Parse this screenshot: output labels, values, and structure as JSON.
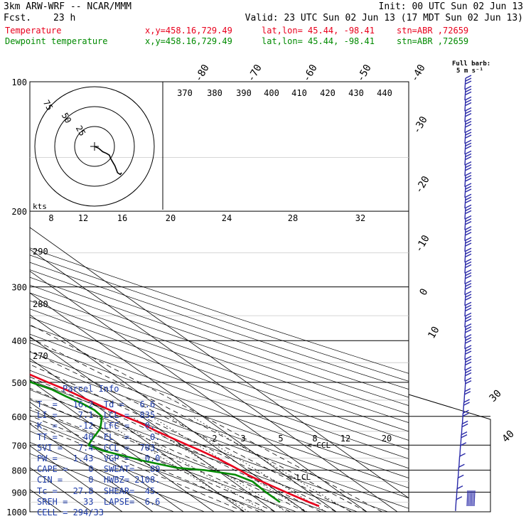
{
  "header": {
    "model": "3km ARW-WRF -- NCAR/MMM",
    "init": "Init: 00 UTC Sun 02 Jun 13",
    "fcst_label": "Fcst.",
    "fcst_value": "23 h",
    "valid": "Valid: 23 UTC Sun 02 Jun 13 (17 MDT Sun 02 Jun 13)",
    "rows": [
      {
        "name": "Temperature",
        "xy": "x,y=458.16,729.49",
        "latlon": "lat,lon= 45.44, -98.41",
        "stn": "stn=ABR ,72659",
        "color": "#e8001c"
      },
      {
        "name": "Dewpoint temperature",
        "xy": "x,y=458.16,729.49",
        "latlon": "lat,lon= 45.44, -98.41",
        "stn": "stn=ABR ,72659",
        "color": "#008a00"
      }
    ]
  },
  "barb_key": {
    "line1": "Full barb:",
    "line2": "5 m s⁻¹"
  },
  "hodograph_rings": [
    "75",
    "50",
    "25"
  ],
  "kts_label": "kts",
  "parcel_info": {
    "title": "Parcel Info",
    "lines": [
      "T  =   16.2  Td =   6.6",
      "LI =    7.1  LCL =  835",
      "K  =    -12  LFC =   0.",
      "TT =     40  EL  =    0.",
      "SVI =   7.4  CCL =  703.",
      "PW =   1.43  VGP =   0.0",
      "CAPE =    0  SWEAT=   89",
      "CIN =     0  HWBZ= 2108.",
      "Tc =   27.8  SHEAR=  45.",
      "SREH =   33  LAPSE=  6.6",
      "CELL = 294/33"
    ]
  },
  "chart_data": {
    "type": "line",
    "title": "",
    "diagram": "skew-T log-P",
    "xlabel": "",
    "ylabel": "",
    "pressure_ticks": [
      100,
      200,
      300,
      400,
      500,
      600,
      700,
      800,
      900,
      1000
    ],
    "isotherm_labels": [
      "-80",
      "-70",
      "-60",
      "-50",
      "-40",
      "-30",
      "-20",
      "-10",
      "0",
      "10",
      "20",
      "30",
      "40"
    ],
    "theta_labels": [
      "370",
      "380",
      "390",
      "400",
      "410",
      "420",
      "430",
      "440"
    ],
    "theta_e_labels": [
      "290",
      "280",
      "270"
    ],
    "mixing_ratio_labels_upper": [
      "8",
      "12",
      "16",
      "20",
      "24",
      "28",
      "32"
    ],
    "mixing_ratio_labels_lower": [
      "2",
      "3",
      "5",
      "8",
      "12",
      "20"
    ],
    "annotations": [
      "<-CCL",
      "<-LCL",
      "kts"
    ],
    "series": [
      {
        "name": "Temperature",
        "color": "#e8001c",
        "pressure": [
          970,
          950,
          900,
          850,
          820,
          800,
          780,
          750,
          720,
          700,
          680,
          650,
          620,
          600,
          580,
          550,
          520,
          500,
          480,
          450,
          420,
          400,
          370,
          350,
          320,
          300,
          280,
          260,
          250,
          240,
          225,
          210,
          200,
          190,
          180,
          170,
          160,
          150,
          140,
          130,
          120,
          110,
          100
        ],
        "temperature_c": [
          17.0,
          15.5,
          12.5,
          9.5,
          8.0,
          7.5,
          6.8,
          5.5,
          3.6,
          2.0,
          0.5,
          -1.8,
          -3.5,
          -5.5,
          -7.4,
          -10.0,
          -12.5,
          -15.0,
          -17.3,
          -19.8,
          -23.0,
          -25.0,
          -29.0,
          -31.8,
          -35.5,
          -38.5,
          -41.5,
          -44.5,
          -46.0,
          -47.5,
          -50.0,
          -52.5,
          -53.2,
          -52.0,
          -50.5,
          -48.8,
          -47.2,
          -46.0,
          -45.0,
          -44.0,
          -43.2,
          -42.3,
          -41.5
        ]
      },
      {
        "name": "Dewpoint temperature",
        "color": "#008a00",
        "pressure": [
          950,
          900,
          850,
          820,
          800,
          790,
          760,
          720,
          700,
          680,
          660,
          640,
          620,
          600,
          580,
          560,
          540,
          520,
          500,
          480,
          460,
          440,
          420,
          400,
          380,
          360,
          340,
          320,
          300,
          280,
          260,
          240,
          220,
          210,
          200,
          180,
          160,
          150,
          140,
          130,
          120,
          110,
          100
        ],
        "dewpoint_c": [
          6.0,
          6.0,
          6.5,
          4.0,
          -4.0,
          -12.0,
          -20.0,
          -28.5,
          -30.5,
          -27.0,
          -23.0,
          -19.0,
          -16.0,
          -13.0,
          -12.5,
          -13.5,
          -15.5,
          -17.0,
          -20.5,
          -23.0,
          -26.0,
          -30.0,
          -36.0,
          -42.0,
          -48.0,
          -56.0,
          -60.0,
          -60.5,
          -58.5,
          -62.0,
          -65.5,
          -68.0,
          -70.5,
          -72.0,
          -72.5,
          -72.0,
          -71.5,
          -68.5,
          -64.0,
          -62.0,
          -63.0,
          -66.0,
          -67.5
        ]
      }
    ],
    "hodograph": {
      "rings_kts": [
        25,
        50,
        75
      ],
      "u_kts": [
        0,
        6,
        12,
        18,
        22,
        24,
        27,
        30,
        34,
        38,
        40
      ],
      "v_kts": [
        0,
        -1,
        -3,
        -4,
        -5,
        -7,
        -9,
        -11,
        -15,
        -16,
        -15
      ]
    },
    "wind_barb_panel": "wind barbs along right edge, speed increasing with height"
  }
}
